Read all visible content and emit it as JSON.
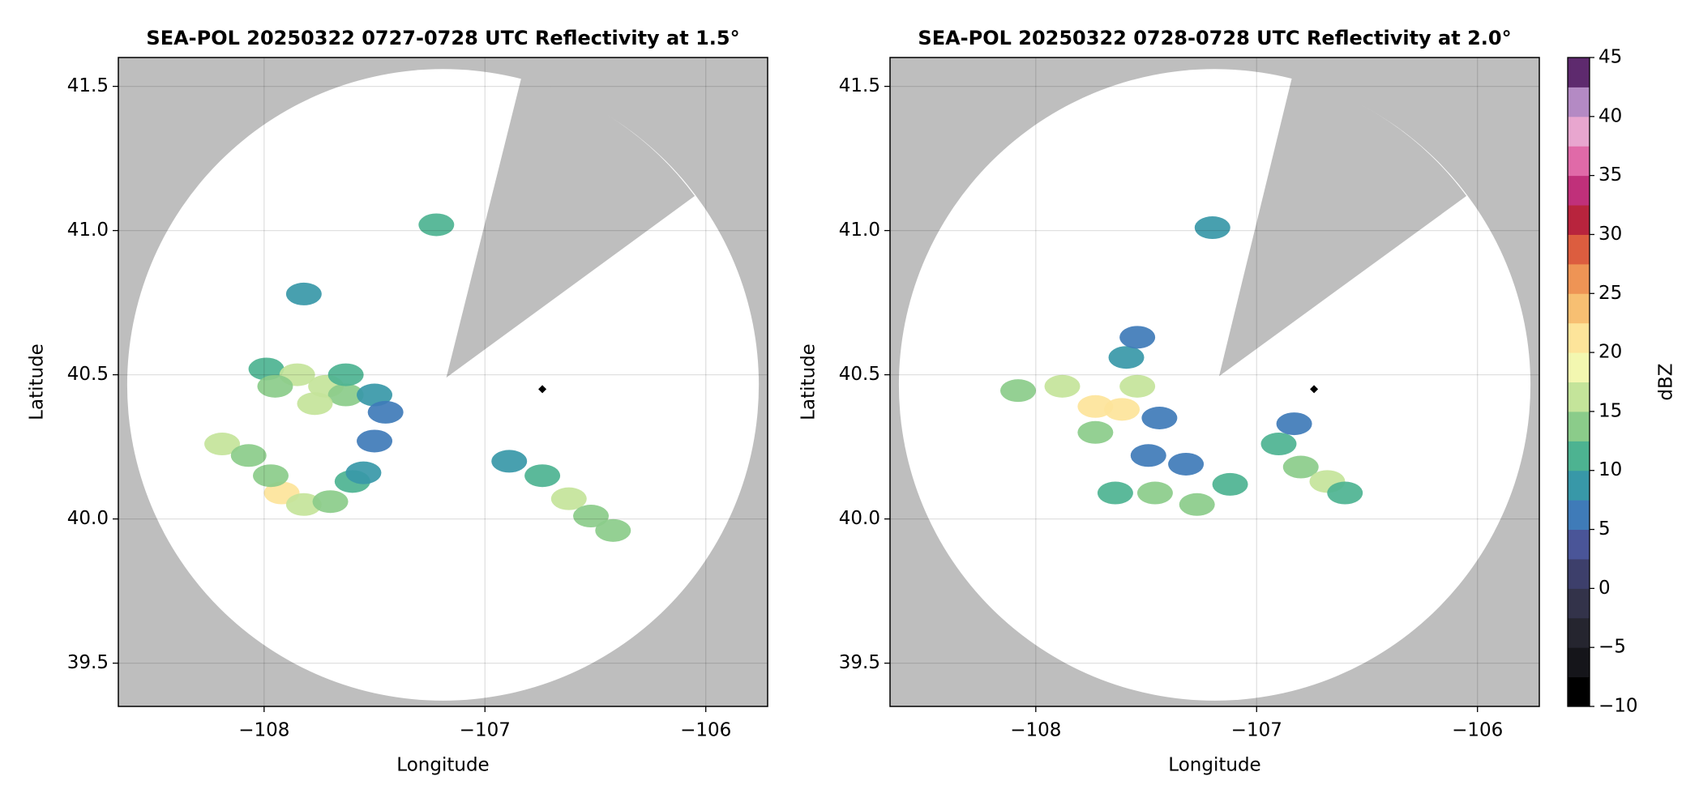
{
  "chart_data": [
    {
      "type": "radar_ppi",
      "title": "SEA-POL 20250322 0727-0728 UTC Reflectivity at 1.5°",
      "xlabel": "Longitude",
      "ylabel": "Latitude",
      "xlim": [
        -108.66,
        -105.72
      ],
      "ylim": [
        39.35,
        41.6
      ],
      "xticks": [
        {
          "value": -108,
          "label": "−108"
        },
        {
          "value": -107,
          "label": "−107"
        },
        {
          "value": -106,
          "label": "−106"
        }
      ],
      "yticks": [
        39.5,
        {
          "value": 40,
          "label": "40.0"
        },
        40.5,
        {
          "value": 41,
          "label": "41.0"
        },
        41.5
      ],
      "grid": true,
      "background": "#bebebe",
      "coverage": {
        "center": [
          -107.19,
          40.465
        ],
        "radius": [
          1.43,
          1.095
        ],
        "blocked": [
          [
            -107.175,
            40.49
          ],
          [
            -106.835,
            41.53
          ],
          [
            -106.05,
            41.12
          ]
        ]
      },
      "site": {
        "lon": -106.74,
        "lat": 40.45
      },
      "echoes": [
        {
          "lon": -107.99,
          "lat": 40.52,
          "dbz": 12
        },
        {
          "lon": -107.85,
          "lat": 40.5,
          "dbz": 15
        },
        {
          "lon": -107.72,
          "lat": 40.46,
          "dbz": 17
        },
        {
          "lon": -107.63,
          "lat": 40.43,
          "dbz": 14
        },
        {
          "lon": -107.5,
          "lat": 40.43,
          "dbz": 8
        },
        {
          "lon": -107.95,
          "lat": 40.46,
          "dbz": 14
        },
        {
          "lon": -107.77,
          "lat": 40.4,
          "dbz": 16
        },
        {
          "lon": -107.63,
          "lat": 40.5,
          "dbz": 12
        },
        {
          "lon": -107.45,
          "lat": 40.37,
          "dbz": 5
        },
        {
          "lon": -107.92,
          "lat": 40.09,
          "dbz": 22
        },
        {
          "lon": -107.82,
          "lat": 40.05,
          "dbz": 16
        },
        {
          "lon": -107.7,
          "lat": 40.06,
          "dbz": 14
        },
        {
          "lon": -107.6,
          "lat": 40.13,
          "dbz": 12
        },
        {
          "lon": -107.55,
          "lat": 40.16,
          "dbz": 8
        },
        {
          "lon": -107.97,
          "lat": 40.15,
          "dbz": 14
        },
        {
          "lon": -108.19,
          "lat": 40.26,
          "dbz": 15
        },
        {
          "lon": -108.07,
          "lat": 40.22,
          "dbz": 13
        },
        {
          "lon": -106.89,
          "lat": 40.2,
          "dbz": 8
        },
        {
          "lon": -106.74,
          "lat": 40.15,
          "dbz": 11
        },
        {
          "lon": -106.62,
          "lat": 40.07,
          "dbz": 15
        },
        {
          "lon": -106.52,
          "lat": 40.01,
          "dbz": 14
        },
        {
          "lon": -106.42,
          "lat": 39.96,
          "dbz": 14
        },
        {
          "lon": -107.22,
          "lat": 41.02,
          "dbz": 10
        },
        {
          "lon": -107.5,
          "lat": 40.27,
          "dbz": 6
        },
        {
          "lon": -107.82,
          "lat": 40.78,
          "dbz": 8
        }
      ]
    },
    {
      "type": "radar_ppi",
      "title": "SEA-POL 20250322 0728-0728 UTC Reflectivity at 2.0°",
      "xlabel": "Longitude",
      "ylabel": "Latitude",
      "xlim": [
        -108.66,
        -105.72
      ],
      "ylim": [
        39.35,
        41.6
      ],
      "xticks": [
        {
          "value": -108,
          "label": "−108"
        },
        {
          "value": -107,
          "label": "−107"
        },
        {
          "value": -106,
          "label": "−106"
        }
      ],
      "yticks": [
        39.5,
        {
          "value": 40,
          "label": "40.0"
        },
        40.5,
        {
          "value": 41,
          "label": "41.0"
        },
        41.5
      ],
      "grid": true,
      "background": "#bebebe",
      "coverage": {
        "center": [
          -107.19,
          40.465
        ],
        "radius": [
          1.43,
          1.095
        ],
        "blocked": [
          [
            -107.17,
            40.495
          ],
          [
            -106.84,
            41.53
          ],
          [
            -106.05,
            41.12
          ]
        ]
      },
      "site": {
        "lon": -106.74,
        "lat": 40.45
      },
      "echoes": [
        {
          "lon": -108.08,
          "lat": 40.445,
          "dbz": 13
        },
        {
          "lon": -107.88,
          "lat": 40.46,
          "dbz": 15
        },
        {
          "lon": -107.73,
          "lat": 40.39,
          "dbz": 20
        },
        {
          "lon": -107.61,
          "lat": 40.38,
          "dbz": 21
        },
        {
          "lon": -107.54,
          "lat": 40.46,
          "dbz": 15
        },
        {
          "lon": -107.59,
          "lat": 40.56,
          "dbz": 8
        },
        {
          "lon": -107.54,
          "lat": 40.63,
          "dbz": 5
        },
        {
          "lon": -107.44,
          "lat": 40.35,
          "dbz": 6
        },
        {
          "lon": -107.49,
          "lat": 40.22,
          "dbz": 7
        },
        {
          "lon": -107.73,
          "lat": 40.3,
          "dbz": 14
        },
        {
          "lon": -107.64,
          "lat": 40.09,
          "dbz": 12
        },
        {
          "lon": -107.46,
          "lat": 40.09,
          "dbz": 13
        },
        {
          "lon": -107.27,
          "lat": 40.05,
          "dbz": 14
        },
        {
          "lon": -107.12,
          "lat": 40.12,
          "dbz": 12
        },
        {
          "lon": -107.32,
          "lat": 40.19,
          "dbz": 6
        },
        {
          "lon": -106.9,
          "lat": 40.26,
          "dbz": 10
        },
        {
          "lon": -106.8,
          "lat": 40.18,
          "dbz": 14
        },
        {
          "lon": -106.68,
          "lat": 40.13,
          "dbz": 15
        },
        {
          "lon": -106.6,
          "lat": 40.09,
          "dbz": 12
        },
        {
          "lon": -106.83,
          "lat": 40.33,
          "dbz": 7
        },
        {
          "lon": -107.2,
          "lat": 41.01,
          "dbz": 9
        }
      ],
      "colorbar": {
        "label": "dBZ",
        "lim": [
          -10,
          45
        ],
        "levels": [
          -10,
          -7.5,
          -5,
          -2.5,
          0,
          2.5,
          5,
          7.5,
          10,
          12.5,
          15,
          17.5,
          20,
          22.5,
          25,
          27.5,
          30,
          32.5,
          35,
          37.5,
          40,
          42.5,
          45
        ],
        "colors": [
          "#000000",
          "#15151a",
          "#25252f",
          "#33334a",
          "#3d3f6b",
          "#4a5598",
          "#3f7bb8",
          "#3898a8",
          "#4db391",
          "#8bcc8a",
          "#c4e49a",
          "#f3f7b0",
          "#fde49a",
          "#f7bf72",
          "#ee9455",
          "#dc5d3f",
          "#b8243d",
          "#c0307a",
          "#e06aa8",
          "#e8a6cf",
          "#b48ac4",
          "#5e2a6e"
        ],
        "ticks": [
          {
            "value": -10,
            "label": "−10"
          },
          {
            "value": -5,
            "label": "−5"
          },
          0,
          5,
          10,
          15,
          20,
          25,
          30,
          35,
          40,
          45
        ]
      }
    }
  ]
}
